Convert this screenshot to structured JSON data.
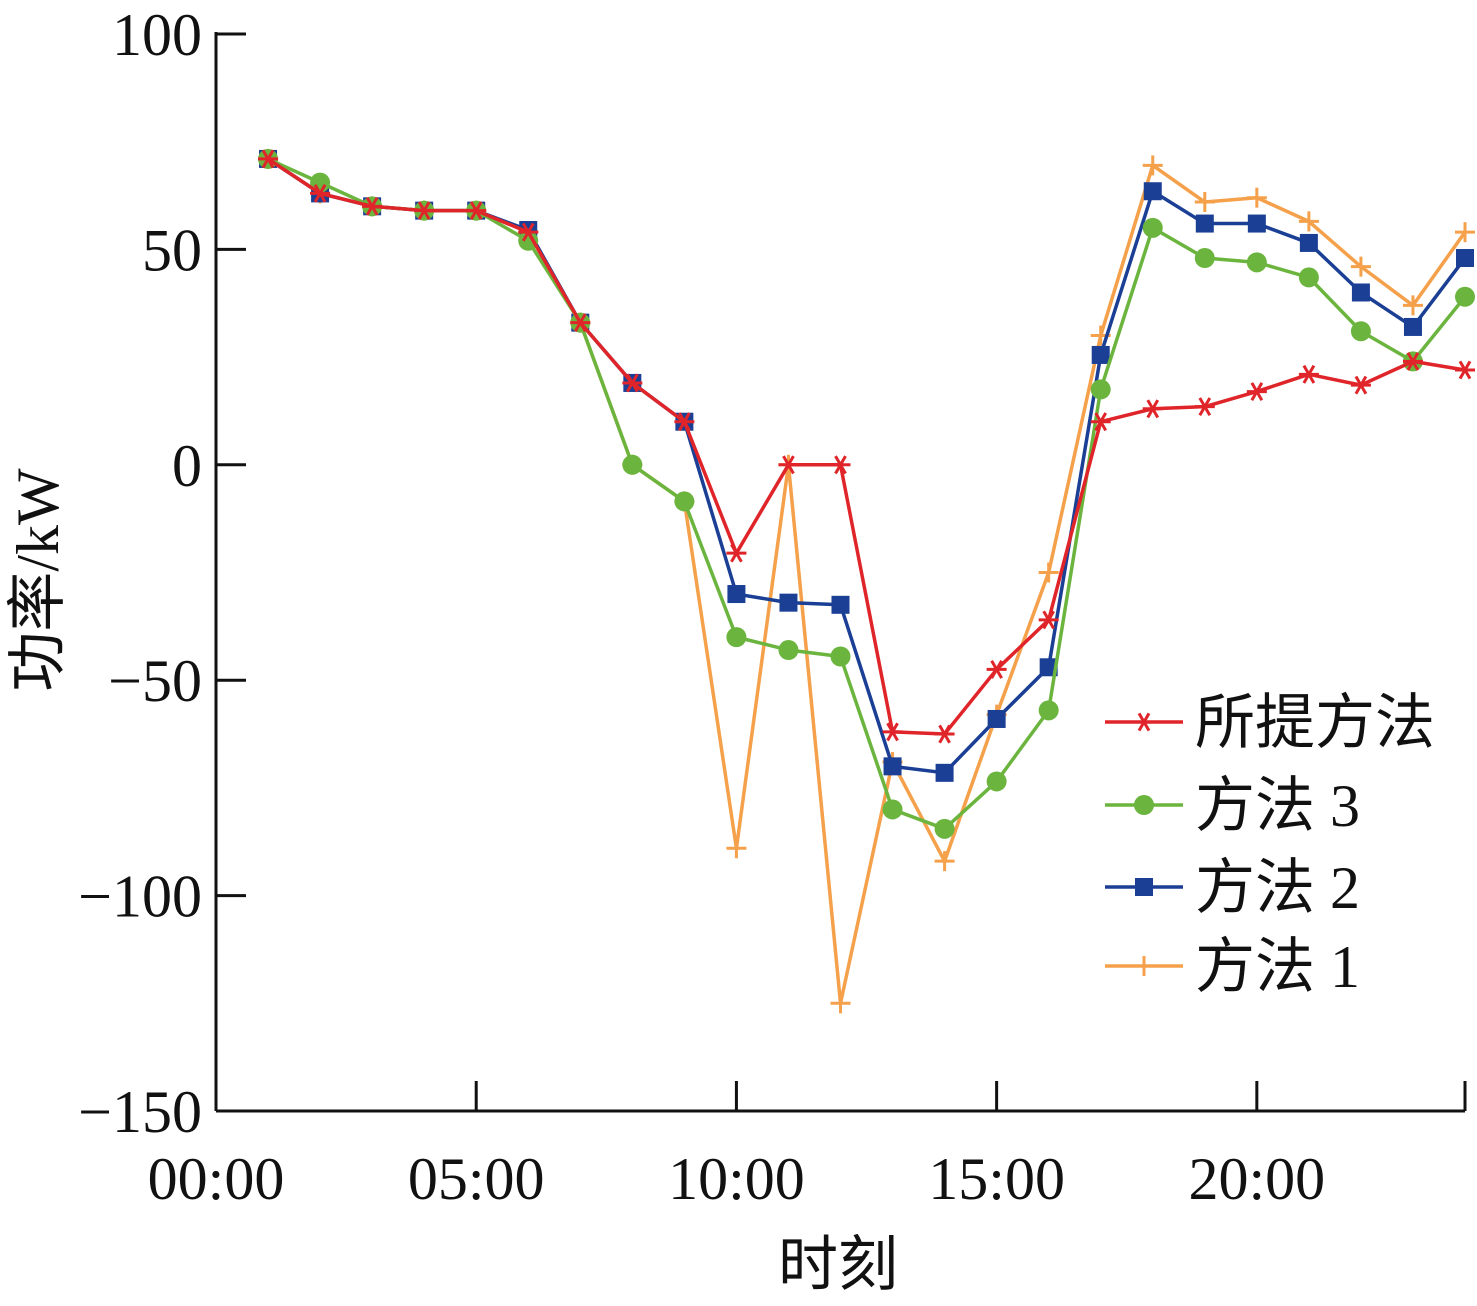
{
  "chart_data": {
    "type": "line",
    "title": "",
    "xlabel": "时刻",
    "ylabel": "功率/kW",
    "ylim": [
      -150,
      100
    ],
    "yticks": [
      -150,
      -100,
      -50,
      0,
      50,
      100
    ],
    "ytick_labels": [
      "−150",
      "−100",
      "−50",
      "0",
      "50",
      "100"
    ],
    "xlim": [
      0,
      24
    ],
    "xticks": [
      0,
      5,
      10,
      15,
      20
    ],
    "xtick_labels": [
      "00:00",
      "05:00",
      "10:00",
      "15:00",
      "20:00"
    ],
    "x": [
      1,
      2,
      3,
      4,
      5,
      6,
      7,
      8,
      9,
      10,
      11,
      12,
      13,
      14,
      15,
      16,
      17,
      18,
      19,
      20,
      21,
      22,
      23,
      24
    ],
    "grid": false,
    "legend_position": "lower-right",
    "series": [
      {
        "name": "方法 1",
        "color": "#F5A04A",
        "marker": "plus",
        "values": [
          71,
          63,
          60,
          59,
          59,
          54,
          33,
          0,
          -8.5,
          -89,
          0,
          -125,
          -69,
          -92,
          -58,
          -25,
          30,
          69.5,
          61,
          62,
          56.5,
          46,
          37,
          54
        ]
      },
      {
        "name": "方法 2",
        "color": "#1A3F95",
        "marker": "square",
        "values": [
          71,
          63,
          60,
          59,
          59,
          54.5,
          33,
          19,
          10,
          -30,
          -32,
          -32.5,
          -70,
          -71.5,
          -59,
          -47,
          25.5,
          63.5,
          56,
          56,
          51.5,
          40,
          32,
          48
        ]
      },
      {
        "name": "方法 3",
        "color": "#6BB53F",
        "marker": "circle",
        "values": [
          71,
          65.5,
          60,
          59,
          59,
          52,
          33,
          0,
          -8.5,
          -40,
          -43,
          -44.5,
          -80,
          -84.5,
          -73.5,
          -57,
          17.5,
          55,
          48,
          47,
          43.5,
          31,
          24,
          39
        ]
      },
      {
        "name": "所提方法",
        "color": "#E0252A",
        "marker": "asterisk",
        "values": [
          71,
          63,
          60,
          59,
          59,
          54,
          33,
          19,
          10,
          -20.5,
          0,
          0,
          -62,
          -62.5,
          -47.5,
          -36,
          10,
          13,
          13.5,
          17,
          21,
          18.5,
          24,
          22
        ]
      }
    ],
    "legend_order": [
      "所提方法",
      "方法 3",
      "方法 2",
      "方法 1"
    ]
  }
}
